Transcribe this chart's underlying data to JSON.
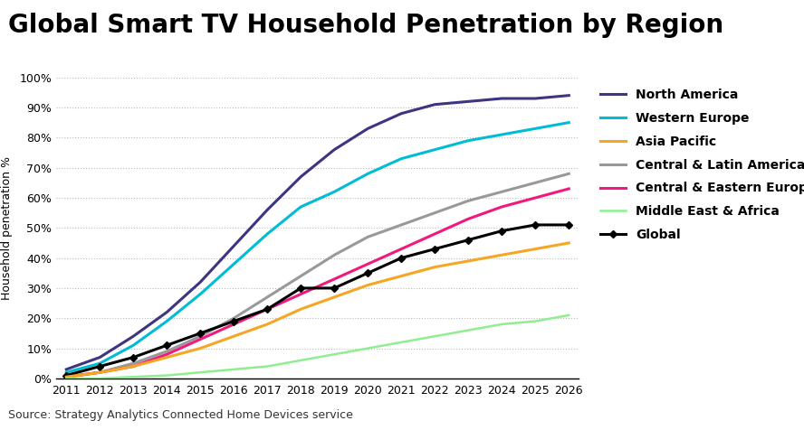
{
  "title": "Global Smart TV Household Penetration by Region",
  "ylabel": "Household penetration %",
  "source": "Source: Strategy Analytics Connected Home Devices service",
  "years": [
    2011,
    2012,
    2013,
    2014,
    2015,
    2016,
    2017,
    2018,
    2019,
    2020,
    2021,
    2022,
    2023,
    2024,
    2025,
    2026
  ],
  "series": [
    {
      "name": "North America",
      "color": "#3d3580",
      "linewidth": 2.2,
      "linestyle": "solid",
      "marker": null,
      "values": [
        3,
        7,
        14,
        22,
        32,
        44,
        56,
        67,
        76,
        83,
        88,
        91,
        92,
        93,
        93,
        94
      ]
    },
    {
      "name": "Western Europe",
      "color": "#00bcd4",
      "linewidth": 2.2,
      "linestyle": "solid",
      "marker": null,
      "values": [
        2,
        5,
        11,
        19,
        28,
        38,
        48,
        57,
        62,
        68,
        73,
        76,
        79,
        81,
        83,
        85
      ]
    },
    {
      "name": "Central & Latin America",
      "color": "#999999",
      "linewidth": 2.2,
      "linestyle": "solid",
      "marker": null,
      "values": [
        0.5,
        2,
        5,
        9,
        14,
        20,
        27,
        34,
        41,
        47,
        51,
        55,
        59,
        62,
        65,
        68
      ]
    },
    {
      "name": "Central & Eastern Europe",
      "color": "#f0197d",
      "linewidth": 2.2,
      "linestyle": "solid",
      "marker": null,
      "values": [
        0.5,
        2,
        4,
        8,
        13,
        18,
        23,
        28,
        33,
        38,
        43,
        48,
        53,
        57,
        60,
        63
      ]
    },
    {
      "name": "Global",
      "color": "#000000",
      "linewidth": 2.2,
      "linestyle": "solid",
      "marker": "D",
      "markersize": 4,
      "values": [
        1,
        4,
        7,
        11,
        15,
        19,
        23,
        30,
        30,
        35,
        40,
        43,
        46,
        49,
        51,
        51
      ]
    },
    {
      "name": "Asia Pacific",
      "color": "#f5a623",
      "linewidth": 2.2,
      "linestyle": "solid",
      "marker": null,
      "values": [
        0.5,
        2,
        4,
        7,
        10,
        14,
        18,
        23,
        27,
        31,
        34,
        37,
        39,
        41,
        43,
        45
      ]
    },
    {
      "name": "Middle East & Africa",
      "color": "#90ee90",
      "linewidth": 1.8,
      "linestyle": "solid",
      "marker": null,
      "values": [
        0,
        0,
        0.5,
        1,
        2,
        3,
        4,
        6,
        8,
        10,
        12,
        14,
        16,
        18,
        19,
        21
      ]
    }
  ],
  "legend_order": [
    "North America",
    "Western Europe",
    "Asia Pacific",
    "Central & Latin America",
    "Central & Eastern Europe",
    "Middle East & Africa",
    "Global"
  ],
  "xlim": [
    2011,
    2026
  ],
  "ylim": [
    0,
    100
  ],
  "yticks": [
    0,
    10,
    20,
    30,
    40,
    50,
    60,
    70,
    80,
    90,
    100
  ],
  "ytick_labels": [
    "0%",
    "10%",
    "20%",
    "30%",
    "40%",
    "50%",
    "60%",
    "70%",
    "80%",
    "90%",
    "100%"
  ],
  "background_color": "#ffffff",
  "grid_color": "#bbbbbb",
  "title_fontsize": 20,
  "axis_label_fontsize": 9,
  "tick_fontsize": 9,
  "legend_fontsize": 10,
  "source_fontsize": 9
}
